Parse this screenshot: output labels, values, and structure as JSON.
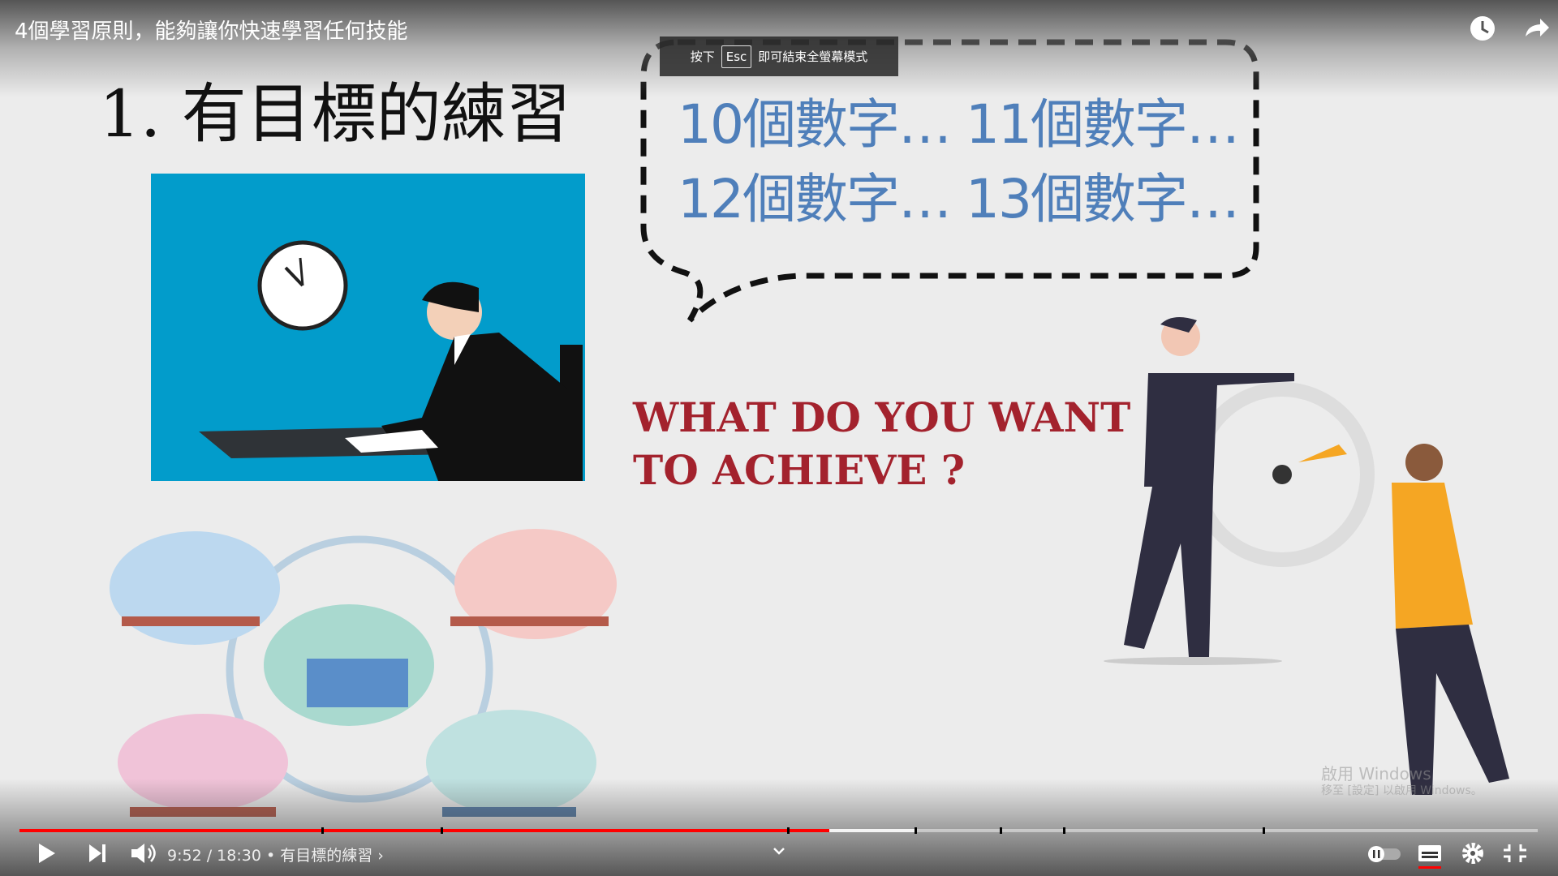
{
  "video": {
    "title": "4個學習原則，能夠讓你快速學習任何技能"
  },
  "notice": {
    "prefix": "按下",
    "key": "Esc",
    "suffix": "即可結束全螢幕模式"
  },
  "slide": {
    "heading": "1. 有目標的練習",
    "bubble_lines": [
      "10個數字… 11個數字…",
      "12個數字… 13個數字…"
    ],
    "question_lines": [
      "WHAT DO YOU WANT",
      "TO ACHIEVE ?"
    ]
  },
  "player": {
    "time": "9:52 / 18:30",
    "chapter": "• 有目標的練習 ›"
  },
  "watermark": {
    "line1": "啟用 Windows",
    "line2": "移至 [設定] 以啟用 Windows。"
  }
}
